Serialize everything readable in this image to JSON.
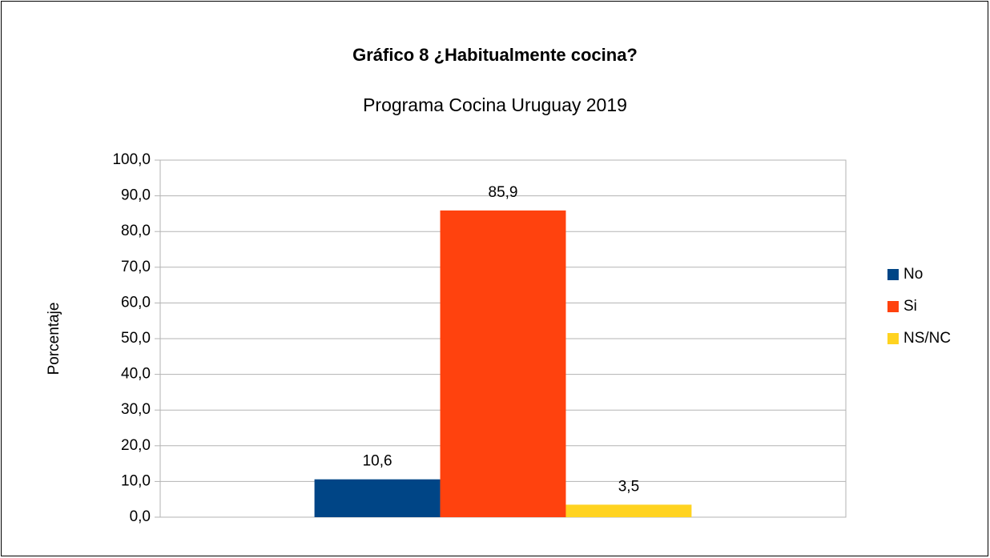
{
  "chart_data": {
    "type": "bar",
    "title": "Gráfico 8 ¿Habitualmente cocina?",
    "subtitle": "Programa Cocina Uruguay 2019",
    "y_label": "Porcentaje",
    "categories": [
      null
    ],
    "series": [
      {
        "name": "No",
        "color": "#004586",
        "values": [
          10.6
        ],
        "value_labels": [
          "10,6"
        ]
      },
      {
        "name": "Si",
        "color": "#ff420e",
        "values": [
          85.9
        ],
        "value_labels": [
          "85,9"
        ]
      },
      {
        "name": "NS/NC",
        "color": "#ffd320",
        "values": [
          3.5
        ],
        "value_labels": [
          "3,5"
        ]
      }
    ],
    "ylim": [
      0,
      100
    ],
    "yticks": [
      {
        "value": 0,
        "label": "0,0"
      },
      {
        "value": 10,
        "label": "10,0"
      },
      {
        "value": 20,
        "label": "20,0"
      },
      {
        "value": 30,
        "label": "30,0"
      },
      {
        "value": 40,
        "label": "40,0"
      },
      {
        "value": 50,
        "label": "50,0"
      },
      {
        "value": 60,
        "label": "60,0"
      },
      {
        "value": 70,
        "label": "70,0"
      },
      {
        "value": 80,
        "label": "80,0"
      },
      {
        "value": 90,
        "label": "90,0"
      },
      {
        "value": 100,
        "label": "100,0"
      }
    ],
    "grid": true,
    "legend": "right"
  }
}
